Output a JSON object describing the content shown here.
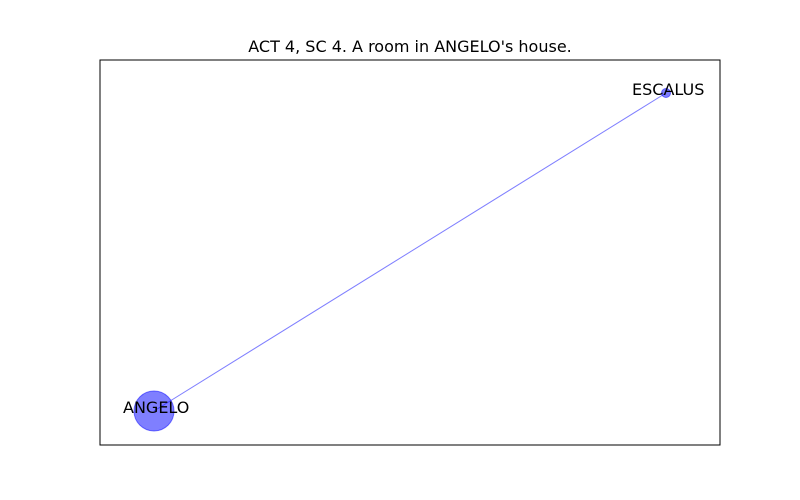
{
  "figure": {
    "title": "ACT 4, SC 4. A room in ANGELO's house."
  },
  "colors": {
    "node_fill": "#0000ff",
    "node_opacity": 0.5,
    "edge_stroke": "#0000ff",
    "edge_opacity": 0.5,
    "frame": "#000000",
    "background": "#ffffff"
  },
  "graph": {
    "nodes": [
      {
        "id": "ANGELO",
        "label": "ANGELO",
        "weight": "large"
      },
      {
        "id": "ESCALUS",
        "label": "ESCALUS",
        "weight": "small"
      }
    ],
    "edges": [
      {
        "source": "ANGELO",
        "target": "ESCALUS"
      }
    ]
  }
}
